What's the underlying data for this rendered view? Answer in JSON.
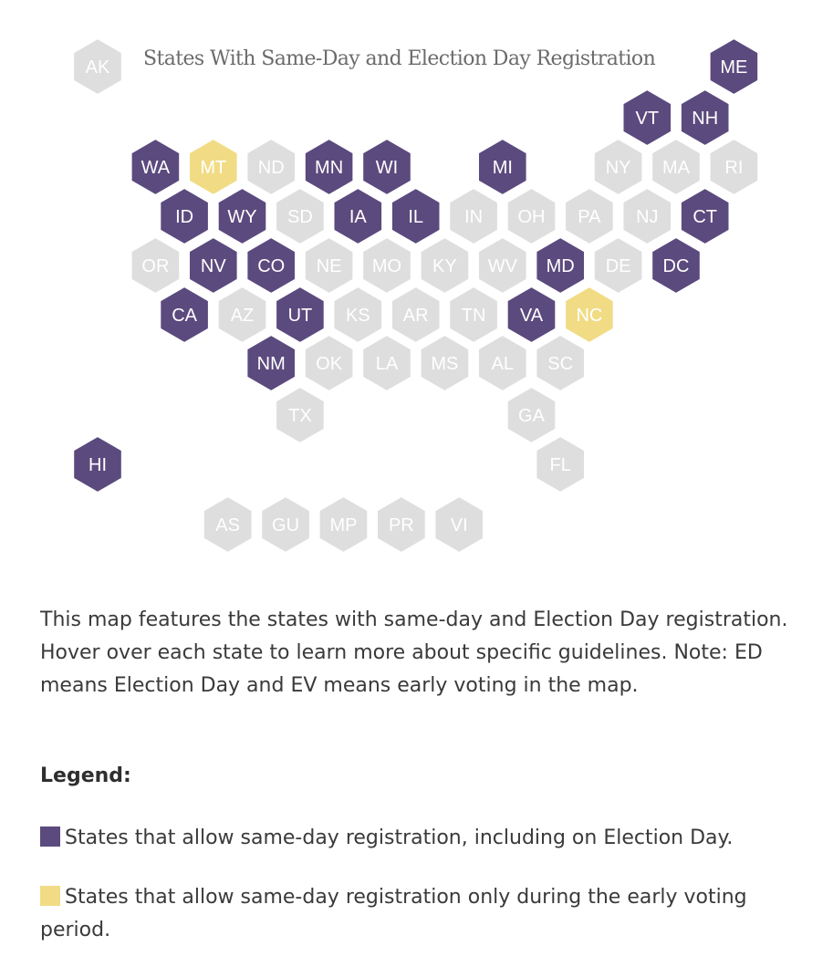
{
  "map": {
    "title": "States With Same-Day and Election Day Registration",
    "colors": {
      "allow_including_election_day": "#5b4a7e",
      "early_voting_only": "#f1dc85",
      "none": "#dedede"
    },
    "states": [
      {
        "abbr": "AK",
        "status": "none",
        "row": 0,
        "col": 0
      },
      {
        "abbr": "ME",
        "status": "allow_including_election_day",
        "row": 0,
        "col": 11
      },
      {
        "abbr": "VT",
        "status": "allow_including_election_day",
        "row": 1,
        "col": 9.5
      },
      {
        "abbr": "NH",
        "status": "allow_including_election_day",
        "row": 1,
        "col": 10.5
      },
      {
        "abbr": "WA",
        "status": "allow_including_election_day",
        "row": 2,
        "col": 1
      },
      {
        "abbr": "MT",
        "status": "early_voting_only",
        "row": 2,
        "col": 2
      },
      {
        "abbr": "ND",
        "status": "none",
        "row": 2,
        "col": 3
      },
      {
        "abbr": "MN",
        "status": "allow_including_election_day",
        "row": 2,
        "col": 4
      },
      {
        "abbr": "WI",
        "status": "allow_including_election_day",
        "row": 2,
        "col": 5
      },
      {
        "abbr": "MI",
        "status": "allow_including_election_day",
        "row": 2,
        "col": 7
      },
      {
        "abbr": "NY",
        "status": "none",
        "row": 2,
        "col": 9
      },
      {
        "abbr": "MA",
        "status": "none",
        "row": 2,
        "col": 10
      },
      {
        "abbr": "RI",
        "status": "none",
        "row": 2,
        "col": 11
      },
      {
        "abbr": "ID",
        "status": "allow_including_election_day",
        "row": 3,
        "col": 1.5
      },
      {
        "abbr": "WY",
        "status": "allow_including_election_day",
        "row": 3,
        "col": 2.5
      },
      {
        "abbr": "SD",
        "status": "none",
        "row": 3,
        "col": 3.5
      },
      {
        "abbr": "IA",
        "status": "allow_including_election_day",
        "row": 3,
        "col": 4.5
      },
      {
        "abbr": "IL",
        "status": "allow_including_election_day",
        "row": 3,
        "col": 5.5
      },
      {
        "abbr": "IN",
        "status": "none",
        "row": 3,
        "col": 6.5
      },
      {
        "abbr": "OH",
        "status": "none",
        "row": 3,
        "col": 7.5
      },
      {
        "abbr": "PA",
        "status": "none",
        "row": 3,
        "col": 8.5
      },
      {
        "abbr": "NJ",
        "status": "none",
        "row": 3,
        "col": 9.5
      },
      {
        "abbr": "CT",
        "status": "allow_including_election_day",
        "row": 3,
        "col": 10.5
      },
      {
        "abbr": "OR",
        "status": "none",
        "row": 4,
        "col": 1
      },
      {
        "abbr": "NV",
        "status": "allow_including_election_day",
        "row": 4,
        "col": 2
      },
      {
        "abbr": "CO",
        "status": "allow_including_election_day",
        "row": 4,
        "col": 3
      },
      {
        "abbr": "NE",
        "status": "none",
        "row": 4,
        "col": 4
      },
      {
        "abbr": "MO",
        "status": "none",
        "row": 4,
        "col": 5
      },
      {
        "abbr": "KY",
        "status": "none",
        "row": 4,
        "col": 6
      },
      {
        "abbr": "WV",
        "status": "none",
        "row": 4,
        "col": 7
      },
      {
        "abbr": "MD",
        "status": "allow_including_election_day",
        "row": 4,
        "col": 8
      },
      {
        "abbr": "DE",
        "status": "none",
        "row": 4,
        "col": 9
      },
      {
        "abbr": "DC",
        "status": "allow_including_election_day",
        "row": 4,
        "col": 10
      },
      {
        "abbr": "CA",
        "status": "allow_including_election_day",
        "row": 5,
        "col": 1.5
      },
      {
        "abbr": "AZ",
        "status": "none",
        "row": 5,
        "col": 2.5
      },
      {
        "abbr": "UT",
        "status": "allow_including_election_day",
        "row": 5,
        "col": 3.5
      },
      {
        "abbr": "KS",
        "status": "none",
        "row": 5,
        "col": 4.5
      },
      {
        "abbr": "AR",
        "status": "none",
        "row": 5,
        "col": 5.5
      },
      {
        "abbr": "TN",
        "status": "none",
        "row": 5,
        "col": 6.5
      },
      {
        "abbr": "VA",
        "status": "allow_including_election_day",
        "row": 5,
        "col": 7.5
      },
      {
        "abbr": "NC",
        "status": "early_voting_only",
        "row": 5,
        "col": 8.5
      },
      {
        "abbr": "NM",
        "status": "allow_including_election_day",
        "row": 6,
        "col": 3
      },
      {
        "abbr": "OK",
        "status": "none",
        "row": 6,
        "col": 4
      },
      {
        "abbr": "LA",
        "status": "none",
        "row": 6,
        "col": 5
      },
      {
        "abbr": "MS",
        "status": "none",
        "row": 6,
        "col": 6
      },
      {
        "abbr": "AL",
        "status": "none",
        "row": 6,
        "col": 7
      },
      {
        "abbr": "SC",
        "status": "none",
        "row": 6,
        "col": 8
      },
      {
        "abbr": "TX",
        "status": "none",
        "row": 7,
        "col": 3.5
      },
      {
        "abbr": "GA",
        "status": "none",
        "row": 7,
        "col": 7.5
      },
      {
        "abbr": "HI",
        "status": "allow_including_election_day",
        "row": 8,
        "col": 0
      },
      {
        "abbr": "FL",
        "status": "none",
        "row": 8,
        "col": 8
      },
      {
        "abbr": "AS",
        "status": "none",
        "row": 9,
        "col": 2.25
      },
      {
        "abbr": "GU",
        "status": "none",
        "row": 9,
        "col": 3.25
      },
      {
        "abbr": "MP",
        "status": "none",
        "row": 9,
        "col": 4.25
      },
      {
        "abbr": "PR",
        "status": "none",
        "row": 9,
        "col": 5.25
      },
      {
        "abbr": "VI",
        "status": "none",
        "row": 9,
        "col": 6.25
      }
    ]
  },
  "description": "This map features the states with same-day and Election Day registration. Hover over each state to learn more about specific guidelines. Note: ED means Election Day and EV means early voting in the map.",
  "legend": {
    "title": "Legend:",
    "items": [
      {
        "label": "States that allow same-day registration, including on Election Day.",
        "color": "#5b4a7e"
      },
      {
        "label": "States that allow same-day registration only during the early voting period.",
        "color": "#f1dc85"
      }
    ]
  }
}
